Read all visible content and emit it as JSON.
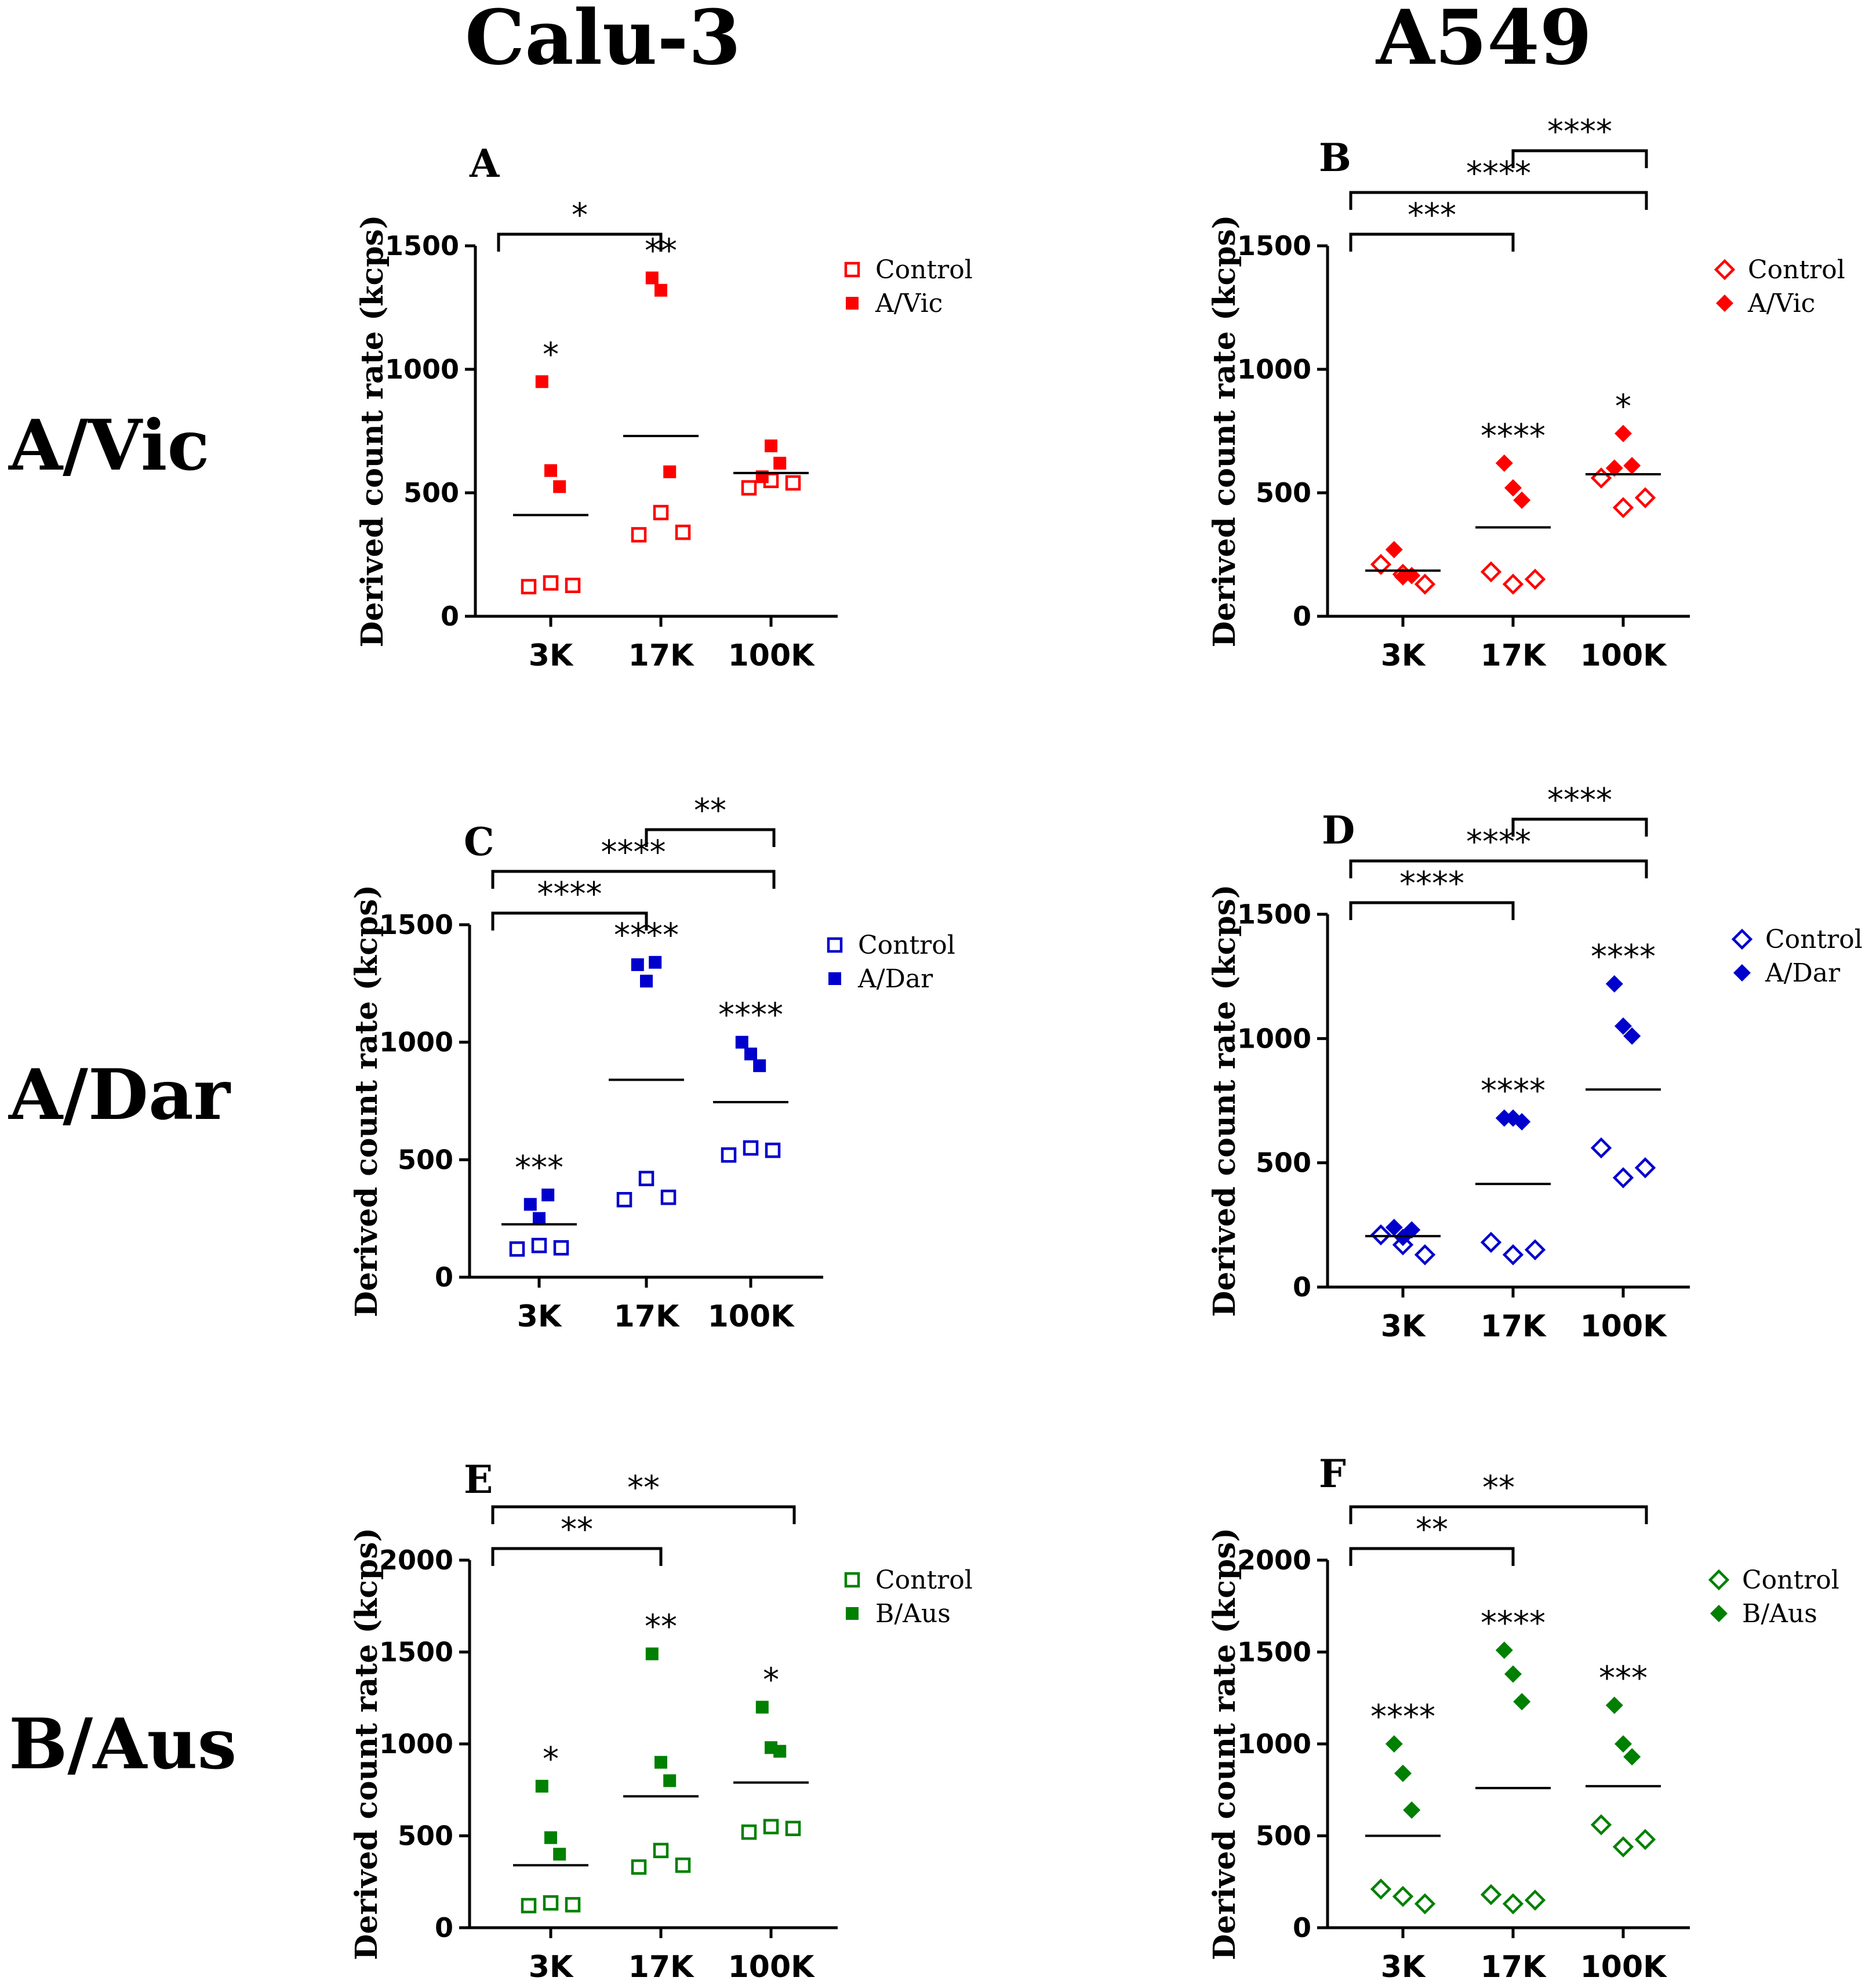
{
  "column_titles": [
    "Calu-3",
    "A549"
  ],
  "row_titles": [
    "A/Vic",
    "A/Dar",
    "B/Aus"
  ],
  "chart_data": [
    {
      "panel": "A",
      "type": "scatter",
      "marker": "square",
      "color": "#ff0000",
      "categories": [
        "3K",
        "17K",
        "100K"
      ],
      "ylabel": "Derived count rate (kcps)",
      "ylim": [
        0,
        1500
      ],
      "yticks": [
        0,
        500,
        1000,
        1500
      ],
      "legend": [
        "Control",
        "A/Vic"
      ],
      "control": [
        [
          120,
          135,
          125
        ],
        [
          330,
          420,
          340
        ],
        [
          520,
          550,
          540
        ]
      ],
      "treated": [
        [
          950,
          590,
          525
        ],
        [
          1370,
          1320,
          585
        ],
        [
          565,
          690,
          620
        ]
      ],
      "means": [
        410,
        730,
        580
      ],
      "point_stars": [
        "*",
        "**",
        ""
      ],
      "brackets": [
        {
          "from": 0,
          "to": 1,
          "label": "*"
        }
      ]
    },
    {
      "panel": "B",
      "type": "scatter",
      "marker": "diamond",
      "color": "#ff0000",
      "categories": [
        "3K",
        "17K",
        "100K"
      ],
      "ylabel": "Derived count rate (kcps)",
      "ylim": [
        0,
        1500
      ],
      "yticks": [
        0,
        500,
        1000,
        1500
      ],
      "legend": [
        "Control",
        "A/Vic"
      ],
      "control": [
        [
          210,
          170,
          130
        ],
        [
          180,
          130,
          150
        ],
        [
          560,
          440,
          480
        ]
      ],
      "treated": [
        [
          270,
          160,
          165
        ],
        [
          620,
          520,
          470
        ],
        [
          600,
          740,
          610
        ]
      ],
      "means": [
        185,
        360,
        575
      ],
      "point_stars": [
        "",
        "****",
        "*"
      ],
      "brackets": [
        {
          "from": 1,
          "to": 2,
          "label": "****"
        },
        {
          "from": 0,
          "to": 2,
          "label": "****"
        },
        {
          "from": 0,
          "to": 1,
          "label": "***"
        }
      ]
    },
    {
      "panel": "C",
      "type": "scatter",
      "marker": "square",
      "color": "#0000cc",
      "categories": [
        "3K",
        "17K",
        "100K"
      ],
      "ylabel": "Derived count rate (kcps)",
      "ylim": [
        0,
        1500
      ],
      "yticks": [
        0,
        500,
        1000,
        1500
      ],
      "legend": [
        "Control",
        "A/Dar"
      ],
      "control": [
        [
          120,
          135,
          125
        ],
        [
          330,
          420,
          340
        ],
        [
          520,
          550,
          540
        ]
      ],
      "treated": [
        [
          310,
          250,
          350
        ],
        [
          1330,
          1260,
          1340
        ],
        [
          1000,
          950,
          900
        ]
      ],
      "means": [
        225,
        840,
        745
      ],
      "point_stars": [
        "***",
        "****",
        "****"
      ],
      "brackets": [
        {
          "from": 1,
          "to": 2,
          "label": "**"
        },
        {
          "from": 0,
          "to": 2,
          "label": "****"
        },
        {
          "from": 0,
          "to": 1,
          "label": "****"
        }
      ]
    },
    {
      "panel": "D",
      "type": "scatter",
      "marker": "diamond",
      "color": "#0000cc",
      "categories": [
        "3K",
        "17K",
        "100K"
      ],
      "ylabel": "Derived count rate (kcps)",
      "ylim": [
        0,
        1500
      ],
      "yticks": [
        0,
        500,
        1000,
        1500
      ],
      "legend": [
        "Control",
        "A/Dar"
      ],
      "control": [
        [
          210,
          170,
          130
        ],
        [
          180,
          130,
          150
        ],
        [
          560,
          440,
          480
        ]
      ],
      "treated": [
        [
          240,
          200,
          230
        ],
        [
          680,
          680,
          665
        ],
        [
          1220,
          1050,
          1010
        ]
      ],
      "means": [
        205,
        415,
        795
      ],
      "point_stars": [
        "",
        "****",
        "****"
      ],
      "brackets": [
        {
          "from": 1,
          "to": 2,
          "label": "****"
        },
        {
          "from": 0,
          "to": 2,
          "label": "****"
        },
        {
          "from": 0,
          "to": 1,
          "label": "****"
        }
      ]
    },
    {
      "panel": "E",
      "type": "scatter",
      "marker": "square",
      "color": "#008000",
      "categories": [
        "3K",
        "17K",
        "100K"
      ],
      "ylabel": "Derived count rate (kcps)",
      "ylim": [
        0,
        2000
      ],
      "yticks": [
        0,
        500,
        1000,
        1500,
        2000
      ],
      "legend": [
        "Control",
        "B/Aus"
      ],
      "control": [
        [
          120,
          135,
          125
        ],
        [
          330,
          420,
          340
        ],
        [
          520,
          550,
          540
        ]
      ],
      "treated": [
        [
          770,
          490,
          400
        ],
        [
          1490,
          900,
          800
        ],
        [
          1200,
          980,
          960
        ]
      ],
      "means": [
        340,
        715,
        790
      ],
      "point_stars": [
        "*",
        "**",
        "*"
      ],
      "brackets": [
        {
          "from": 0,
          "to": 2,
          "label": "**"
        },
        {
          "from": 0,
          "to": 1,
          "label": "**"
        }
      ]
    },
    {
      "panel": "F",
      "type": "scatter",
      "marker": "diamond",
      "color": "#008000",
      "categories": [
        "3K",
        "17K",
        "100K"
      ],
      "ylabel": "Derived count rate (kcps)",
      "ylim": [
        0,
        2000
      ],
      "yticks": [
        0,
        500,
        1000,
        1500,
        2000
      ],
      "legend": [
        "Control",
        "B/Aus"
      ],
      "control": [
        [
          210,
          170,
          130
        ],
        [
          180,
          130,
          150
        ],
        [
          560,
          440,
          480
        ]
      ],
      "treated": [
        [
          1000,
          840,
          640
        ],
        [
          1510,
          1380,
          1230
        ],
        [
          1210,
          1000,
          930
        ]
      ],
      "means": [
        500,
        760,
        770
      ],
      "point_stars": [
        "****",
        "****",
        "***"
      ],
      "brackets": [
        {
          "from": 0,
          "to": 2,
          "label": "**"
        },
        {
          "from": 0,
          "to": 1,
          "label": "**"
        }
      ]
    }
  ]
}
